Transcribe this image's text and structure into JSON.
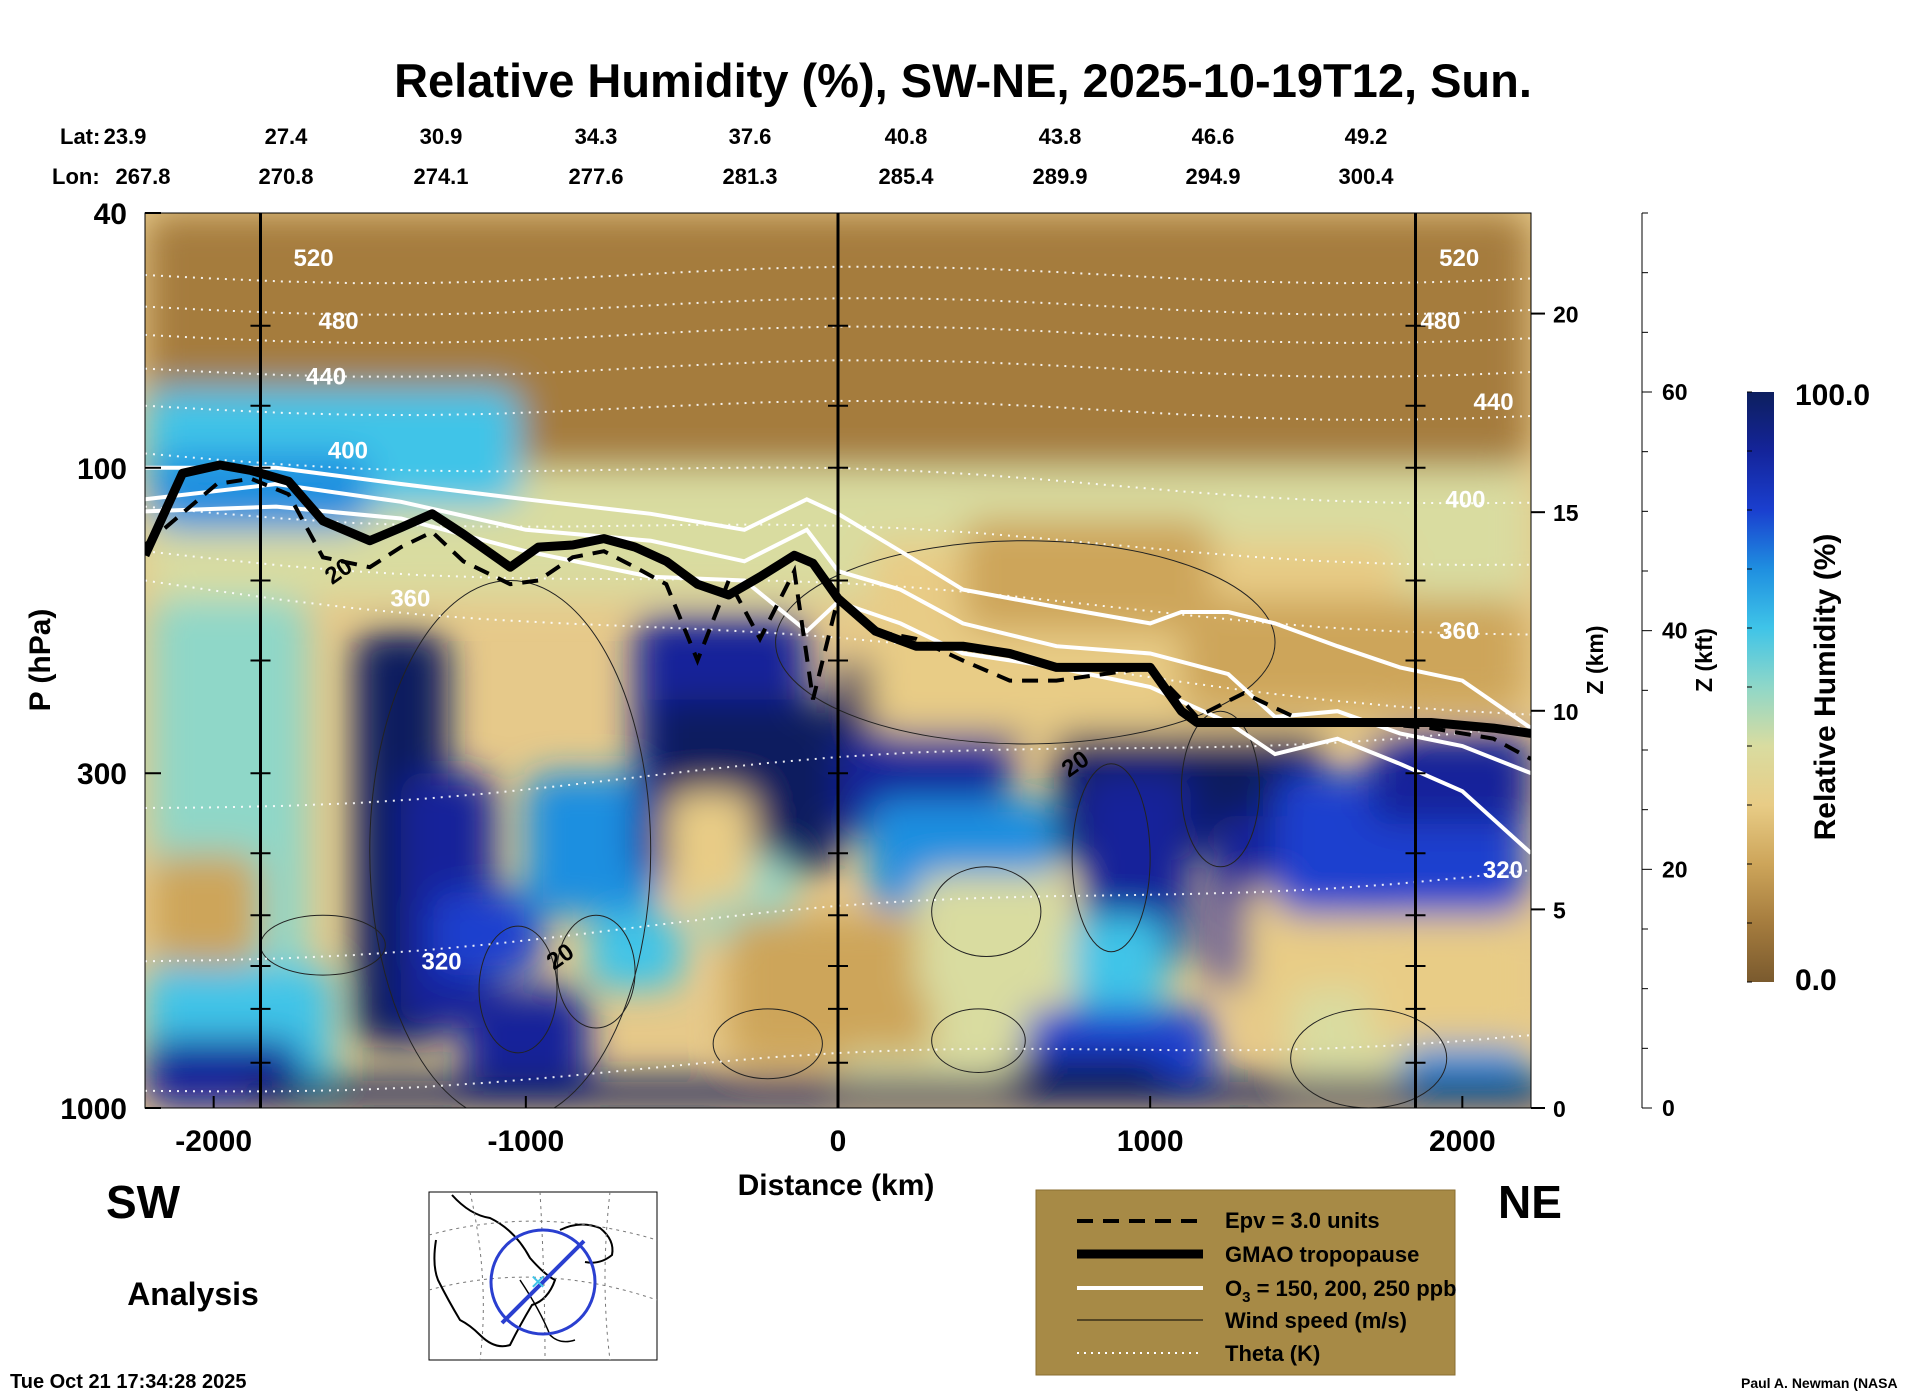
{
  "chart_data": {
    "type": "heatmap",
    "title": "Relative Humidity (%), SW-NE, 2025-10-19T12, Sun.",
    "xlabel": "Distance (km)",
    "ylabel": "P (hPa)",
    "z_axis_label": "Z (km)",
    "kft_axis_label": "Z (kft)",
    "xlim": [
      -2220,
      2220
    ],
    "x_ticks": [
      -2000,
      -1000,
      0,
      1000,
      2000
    ],
    "x_tick_labels": [
      "-2000",
      "-1000",
      "0",
      "1000",
      "2000"
    ],
    "ylim_hpa": [
      1000,
      40
    ],
    "y_tick_labels": [
      "40",
      "100",
      "300",
      "1000"
    ],
    "z_km_ticks": [
      0,
      5,
      10,
      15,
      20
    ],
    "z_kft_ticks": [
      0,
      20,
      40,
      60
    ],
    "lat_label": "Lat:",
    "lon_label": "Lon:",
    "lat": [
      "23.9",
      "27.4",
      "30.9",
      "34.3",
      "37.6",
      "40.8",
      "43.8",
      "46.6",
      "49.2"
    ],
    "lon": [
      "267.8",
      "270.8",
      "274.1",
      "277.6",
      "281.3",
      "285.4",
      "289.9",
      "294.9",
      "300.4"
    ],
    "colorbar": {
      "label": "Relative Humidity (%)",
      "max_label": "100.0",
      "min_label": "0.0",
      "colors": [
        "#7a5a2e",
        "#a57c3e",
        "#cda55a",
        "#e8cc86",
        "#d9dca0",
        "#8fd7c8",
        "#3fc4e8",
        "#1f8fe0",
        "#1a3fcf",
        "#14249a",
        "#0d1f5e"
      ]
    },
    "theta_contour_labels": [
      {
        "text": "520",
        "x": -1680,
        "p": 47
      },
      {
        "text": "480",
        "x": -1600,
        "p": 59
      },
      {
        "text": "440",
        "x": -1640,
        "p": 72
      },
      {
        "text": "400",
        "x": -1570,
        "p": 94
      },
      {
        "text": "360",
        "x": -1370,
        "p": 160
      },
      {
        "text": "320",
        "x": -1270,
        "p": 590
      },
      {
        "text": "520",
        "x": 1990,
        "p": 47
      },
      {
        "text": "480",
        "x": 1930,
        "p": 59
      },
      {
        "text": "440",
        "x": 2100,
        "p": 79
      },
      {
        "text": "400",
        "x": 2010,
        "p": 112
      },
      {
        "text": "360",
        "x": 1990,
        "p": 180
      },
      {
        "text": "320",
        "x": 2130,
        "p": 425
      }
    ],
    "wind_contour_labels": [
      {
        "text": "20",
        "x": -1600,
        "p": 145
      },
      {
        "text": "20",
        "x": 760,
        "p": 290
      },
      {
        "text": "20",
        "x": -890,
        "p": 580
      }
    ],
    "tropopause": {
      "x": [
        -2220,
        -2100,
        -1980,
        -1880,
        -1760,
        -1650,
        -1500,
        -1400,
        -1300,
        -1200,
        -1050,
        -960,
        -850,
        -750,
        -650,
        -550,
        -450,
        -350,
        -250,
        -140,
        -80,
        0,
        120,
        250,
        400,
        550,
        700,
        850,
        1000,
        1100,
        1150,
        1300,
        1500,
        1700,
        1900,
        2100,
        2220
      ],
      "p": [
        137,
        102,
        99,
        101,
        105,
        121,
        130,
        124,
        118,
        127,
        143,
        133,
        132,
        129,
        133,
        140,
        152,
        158,
        148,
        137,
        141,
        160,
        180,
        190,
        190,
        195,
        205,
        205,
        205,
        240,
        250,
        250,
        250,
        250,
        250,
        255,
        260
      ]
    },
    "epv_3pvu": {
      "x": [
        -2220,
        -2120,
        -1990,
        -1880,
        -1760,
        -1650,
        -1500,
        -1400,
        -1300,
        -1200,
        -1050,
        -960,
        -850,
        -750,
        -650,
        -550,
        -450,
        -350,
        -250,
        -140,
        -80,
        0,
        120,
        250,
        400,
        550,
        700,
        850,
        1000,
        1100,
        1150,
        1300,
        1500,
        1700,
        1900,
        2100,
        2220
      ],
      "p": [
        132,
        120,
        106,
        104,
        110,
        138,
        143,
        133,
        126,
        140,
        152,
        150,
        138,
        135,
        143,
        152,
        200,
        150,
        185,
        145,
        230,
        160,
        180,
        185,
        200,
        215,
        215,
        210,
        205,
        230,
        245,
        225,
        250,
        250,
        255,
        265,
        285
      ]
    },
    "ozone_150": {
      "x": [
        -2220,
        -1800,
        -1400,
        -1000,
        -600,
        -300,
        -100,
        0,
        200,
        400,
        700,
        1000,
        1100,
        1250,
        1400,
        1600,
        1800,
        2000,
        2220
      ],
      "p": [
        100,
        100,
        106,
        112,
        118,
        125,
        112,
        118,
        135,
        155,
        165,
        175,
        168,
        168,
        175,
        190,
        205,
        215,
        255
      ]
    },
    "ozone_200": {
      "x": [
        -2220,
        -1800,
        -1400,
        -1000,
        -600,
        -300,
        -100,
        0,
        200,
        400,
        700,
        1000,
        1250,
        1400,
        1600,
        1800,
        2000,
        2220
      ],
      "p": [
        112,
        106,
        113,
        125,
        130,
        140,
        125,
        145,
        155,
        175,
        190,
        195,
        210,
        245,
        240,
        260,
        272,
        300
      ]
    },
    "ozone_250": {
      "x": [
        -2220,
        -1800,
        -1400,
        -1000,
        -600,
        -300,
        -100,
        0,
        200,
        400,
        700,
        1000,
        1250,
        1400,
        1600,
        1800,
        2000,
        2220
      ],
      "p": [
        117,
        115,
        120,
        135,
        148,
        150,
        180,
        162,
        175,
        195,
        205,
        220,
        250,
        280,
        265,
        290,
        320,
        400
      ]
    },
    "theta_lines": [
      {
        "p_left": 50,
        "p_right": 50
      },
      {
        "p_left": 56,
        "p_right": 56
      },
      {
        "p_left": 62,
        "p_right": 62
      },
      {
        "p_left": 70,
        "p_right": 70
      },
      {
        "p_left": 80,
        "p_right": 82
      },
      {
        "p_left": 95,
        "p_right": 112
      },
      {
        "p_left": 115,
        "p_right": 140
      },
      {
        "p_left": 135,
        "p_right": 180
      },
      {
        "p_left": 150,
        "p_right": 240
      },
      {
        "p_left": 340,
        "p_right": 250
      },
      {
        "p_left": 590,
        "p_right": 420
      },
      {
        "p_left": 940,
        "p_right": 760
      }
    ],
    "legend": [
      {
        "label": "Epv = 3.0 units",
        "style": "dashed-black"
      },
      {
        "label": "GMAO tropopause",
        "style": "thick-black"
      },
      {
        "label_main": "O",
        "label_sub": "3",
        "label_rest": " = 150, 200, 250 ppb",
        "style": "white"
      },
      {
        "label": "Wind speed (m/s)",
        "style": "thin-black"
      },
      {
        "label": "Theta (K)",
        "style": "dotted-white"
      }
    ]
  },
  "labels": {
    "sw": "SW",
    "ne": "NE",
    "analysis": "Analysis",
    "timestamp": "Tue Oct 21 17:34:28 2025",
    "credit": "Paul A. Newman (NASA"
  },
  "map_inset": {
    "route_color": "#2a3fd0",
    "center_marker_color": "#3fc4e8"
  }
}
